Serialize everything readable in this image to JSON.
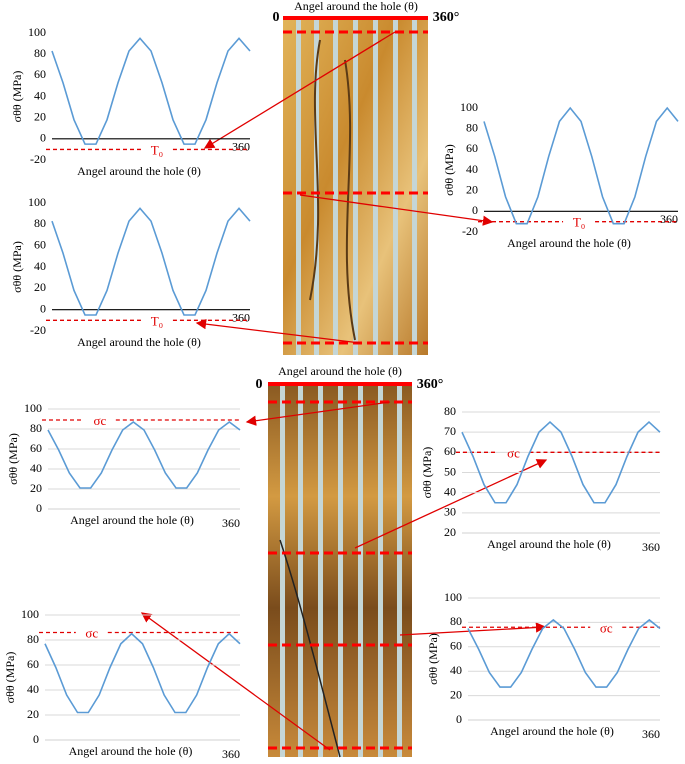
{
  "chart_data": [
    {
      "type": "line",
      "xlabel": "Angel around the hole (θ)",
      "ylabel": "σθθ (MPa)",
      "color": "#5b9bd5",
      "x": [
        0,
        20,
        40,
        60,
        80,
        100,
        120,
        140,
        160,
        180,
        200,
        220,
        240,
        260,
        280,
        300,
        320,
        340,
        360
      ],
      "values": [
        83,
        53,
        18,
        -5,
        -5,
        18,
        53,
        83,
        95,
        83,
        53,
        18,
        -5,
        -5,
        18,
        53,
        83,
        95,
        83
      ],
      "xlim": [
        0,
        360
      ],
      "xticks": [
        360
      ],
      "ylim": [
        -20,
        100
      ],
      "yticks": [
        -20,
        0,
        20,
        40,
        60,
        80,
        100
      ],
      "grid": false,
      "annotation": {
        "text": "T₀",
        "y": -10,
        "color": "#e00000"
      }
    },
    {
      "type": "line",
      "xlabel": "Angel around the hole (θ)",
      "ylabel": "σθθ (MPa)",
      "color": "#5b9bd5",
      "x": [
        0,
        20,
        40,
        60,
        80,
        100,
        120,
        140,
        160,
        180,
        200,
        220,
        240,
        260,
        280,
        300,
        320,
        340,
        360
      ],
      "values": [
        83,
        53,
        18,
        -5,
        -5,
        18,
        53,
        83,
        95,
        83,
        53,
        18,
        -5,
        -5,
        18,
        53,
        83,
        95,
        83
      ],
      "xlim": [
        0,
        360
      ],
      "xticks": [
        360
      ],
      "ylim": [
        -20,
        100
      ],
      "yticks": [
        -20,
        0,
        20,
        40,
        60,
        80,
        100
      ],
      "grid": false,
      "annotation": {
        "text": "T₀",
        "y": -10,
        "color": "#e00000"
      }
    },
    {
      "type": "line",
      "xlabel": "Angel around the hole (θ)",
      "ylabel": "σθθ (MPa)",
      "color": "#5b9bd5",
      "x": [
        0,
        20,
        40,
        60,
        80,
        100,
        120,
        140,
        160,
        180,
        200,
        220,
        240,
        260,
        280,
        300,
        320,
        340,
        360
      ],
      "values": [
        87,
        53,
        14,
        -12,
        -12,
        14,
        53,
        87,
        100,
        87,
        53,
        14,
        -12,
        -12,
        14,
        53,
        87,
        100,
        87
      ],
      "xlim": [
        0,
        360
      ],
      "xticks": [
        360
      ],
      "ylim": [
        -20,
        100
      ],
      "yticks": [
        -20,
        0,
        20,
        40,
        60,
        80,
        100
      ],
      "grid": false,
      "annotation": {
        "text": "T₀",
        "y": -10,
        "color": "#e00000"
      }
    },
    {
      "type": "line",
      "xlabel": "Angel around the hole (θ)",
      "ylabel": "σθθ (MPa)",
      "color": "#5b9bd5",
      "x": [
        0,
        20,
        40,
        60,
        80,
        100,
        120,
        140,
        160,
        180,
        200,
        220,
        240,
        260,
        280,
        300,
        320,
        340,
        360
      ],
      "values": [
        79,
        59,
        36,
        21,
        21,
        36,
        59,
        79,
        87,
        79,
        59,
        36,
        21,
        21,
        36,
        59,
        79,
        87,
        79
      ],
      "xlim": [
        0,
        360
      ],
      "xticks": [
        360
      ],
      "ylim": [
        0,
        100
      ],
      "yticks": [
        0,
        20,
        40,
        60,
        80,
        100
      ],
      "grid": true,
      "annotation": {
        "text": "σc",
        "y": 89,
        "color": "#e00000"
      }
    },
    {
      "type": "line",
      "xlabel": "Angel around the hole (θ)",
      "ylabel": "σθθ (MPa)",
      "color": "#5b9bd5",
      "x": [
        0,
        20,
        40,
        60,
        80,
        100,
        120,
        140,
        160,
        180,
        200,
        220,
        240,
        260,
        280,
        300,
        320,
        340,
        360
      ],
      "values": [
        70,
        58,
        44,
        35,
        35,
        44,
        58,
        70,
        75,
        70,
        58,
        44,
        35,
        35,
        44,
        58,
        70,
        75,
        70
      ],
      "xlim": [
        0,
        360
      ],
      "xticks": [
        360
      ],
      "ylim": [
        20,
        80
      ],
      "yticks": [
        20,
        30,
        40,
        50,
        60,
        70,
        80
      ],
      "grid": true,
      "annotation": {
        "text": "σc",
        "y": 60,
        "color": "#e00000"
      }
    },
    {
      "type": "line",
      "xlabel": "Angel around the hole (θ)",
      "ylabel": "σθθ (MPa)",
      "color": "#5b9bd5",
      "x": [
        0,
        20,
        40,
        60,
        80,
        100,
        120,
        140,
        160,
        180,
        200,
        220,
        240,
        260,
        280,
        300,
        320,
        340,
        360
      ],
      "values": [
        77,
        58,
        36,
        22,
        22,
        36,
        58,
        77,
        85,
        77,
        58,
        36,
        22,
        22,
        36,
        58,
        77,
        85,
        77
      ],
      "xlim": [
        0,
        360
      ],
      "xticks": [
        360
      ],
      "ylim": [
        0,
        100
      ],
      "yticks": [
        0,
        20,
        40,
        60,
        80,
        100
      ],
      "grid": true,
      "annotation": {
        "text": "σc",
        "y": 86,
        "color": "#e00000"
      }
    },
    {
      "type": "line",
      "xlabel": "Angel around the hole (θ)",
      "ylabel": "σθθ (MPa)",
      "color": "#5b9bd5",
      "x": [
        0,
        20,
        40,
        60,
        80,
        100,
        120,
        140,
        160,
        180,
        200,
        220,
        240,
        260,
        280,
        300,
        320,
        340,
        360
      ],
      "values": [
        75,
        58,
        39,
        27,
        27,
        39,
        58,
        75,
        82,
        75,
        58,
        39,
        27,
        27,
        39,
        58,
        75,
        82,
        75
      ],
      "xlim": [
        0,
        360
      ],
      "xticks": [
        360
      ],
      "ylim": [
        0,
        100
      ],
      "yticks": [
        0,
        20,
        40,
        60,
        80,
        100
      ],
      "grid": true,
      "annotation": {
        "text": "σc",
        "y": 76,
        "color": "#e00000"
      }
    }
  ],
  "images": [
    {
      "title": "Angel around the hole (θ)",
      "start": "0",
      "end": "360°"
    },
    {
      "title": "Angel around the hole (θ)",
      "start": "0",
      "end": "360°"
    }
  ]
}
